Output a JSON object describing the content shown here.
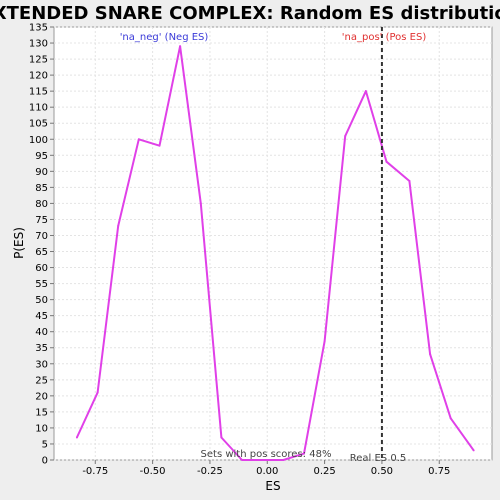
{
  "chart_data": {
    "type": "line",
    "title": "EXTENDED SNARE COMPLEX: Random ES distribution",
    "xlabel": "ES",
    "ylabel": "P(ES)",
    "xlim": [
      -0.93,
      0.98
    ],
    "ylim": [
      0,
      135
    ],
    "x_ticks": [
      -0.75,
      -0.5,
      -0.25,
      0.0,
      0.25,
      0.5,
      0.75
    ],
    "x_tick_labels": [
      "-0.75",
      "-0.50",
      "-0.25",
      "0.00",
      "0.25",
      "0.50",
      "0.75"
    ],
    "y_ticks": [
      0,
      5,
      10,
      15,
      20,
      25,
      30,
      35,
      40,
      45,
      50,
      55,
      60,
      65,
      70,
      75,
      80,
      85,
      90,
      95,
      100,
      105,
      110,
      115,
      120,
      125,
      130,
      135
    ],
    "grid": true,
    "series": [
      {
        "color": "#e040e8",
        "x": [
          -0.83,
          -0.74,
          -0.65,
          -0.56,
          -0.47,
          -0.38,
          -0.29,
          -0.2,
          -0.11,
          -0.02,
          0.07,
          0.16,
          0.25,
          0.34,
          0.43,
          0.52,
          0.62,
          0.71,
          0.8,
          0.9
        ],
        "y": [
          7,
          21,
          73,
          100,
          98,
          129,
          80,
          7,
          0,
          0,
          0,
          2,
          37,
          101,
          115,
          93,
          87,
          33,
          13,
          3
        ]
      }
    ],
    "real_es": 0.5,
    "annotations": {
      "neg_label": "'na_neg' (Neg ES)",
      "pos_label": "'na_pos' (Pos ES)",
      "neg_color": "#3a3ad8",
      "pos_color": "#e03030",
      "sets_label": "Sets with pos scores: 48%",
      "real_es_label": "Real ES 0.5"
    }
  }
}
